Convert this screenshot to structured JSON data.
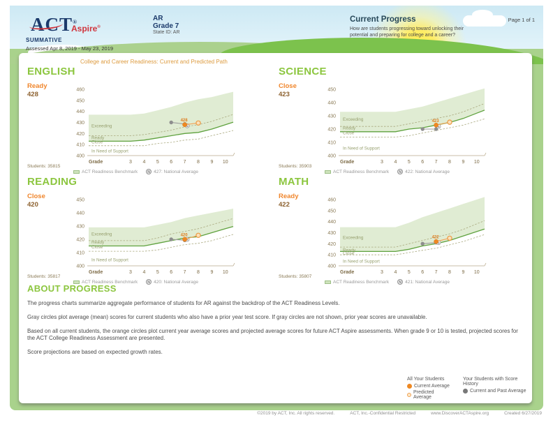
{
  "header": {
    "brand": "ACT",
    "brand_reg": "®",
    "brand_sub": "Aspire",
    "program": "SUMMATIVE",
    "assessed": "Assessed Apr 8, 2019 - May 23, 2019",
    "org": "AR",
    "grade": "Grade 7",
    "state_id": "State ID: AR",
    "title": "Current Progress",
    "subtitle": "How are students progressing toward unlocking their potential and preparing for college and a career?",
    "page": "Page 1 of 1"
  },
  "main_chart_title": "College and Career Readiness: Current and Predicted Path",
  "shared": {
    "x_axis_label": "Grade",
    "grades": [
      "3",
      "4",
      "5",
      "6",
      "7",
      "8",
      "9",
      "10"
    ],
    "zone_labels": [
      "Exceeding",
      "Ready",
      "Close",
      "In Need of Support"
    ],
    "n_glyph": "N",
    "benchmark_legend": "ACT Readiness Benchmark"
  },
  "chart_data": [
    {
      "type": "line",
      "subject": "ENGLISH",
      "status": "Ready",
      "score": "428",
      "students": "Students: 35815",
      "national_label": "427: National Average",
      "ylim": [
        400,
        460
      ],
      "yticks": [
        460,
        450,
        440,
        430,
        420,
        410,
        400
      ],
      "band_top": [
        437,
        438,
        441,
        444,
        448,
        451,
        453,
        456
      ],
      "benchmark": [
        413,
        414,
        416,
        418,
        420,
        421,
        424,
        428
      ],
      "upper_dashed": [
        418,
        419,
        421,
        423,
        426,
        428,
        431,
        435
      ],
      "lower_dashed": [
        409,
        409,
        411,
        412,
        414,
        415,
        418,
        421
      ],
      "zone_y": [
        427,
        416,
        412.3,
        404
      ],
      "gray_points": [
        [
          6,
          430
        ],
        [
          7,
          428.6
        ]
      ],
      "current_point": [
        7,
        428
      ],
      "predicted_point": [
        8,
        429.5
      ],
      "national_value": 427,
      "point_label": "428"
    },
    {
      "type": "line",
      "subject": "SCIENCE",
      "status": "Close",
      "score": "423",
      "students": "Students: 35903",
      "national_label": "422: National Average",
      "ylim": [
        400,
        450
      ],
      "yticks": [
        450,
        440,
        430,
        420,
        410,
        400
      ],
      "band_top": [
        433,
        433,
        435,
        437,
        440,
        443,
        446,
        449
      ],
      "benchmark": [
        418,
        418,
        420,
        421,
        423,
        425,
        428,
        432
      ],
      "upper_dashed": [
        422,
        422,
        424,
        426,
        428,
        430,
        433,
        437
      ],
      "lower_dashed": [
        414,
        414,
        415,
        417,
        419,
        421,
        423,
        426
      ],
      "zone_y": [
        427.5,
        420.8,
        417,
        405.5
      ],
      "gray_points": [
        [
          6,
          420
        ],
        [
          7,
          420
        ]
      ],
      "current_point": [
        7,
        423
      ],
      "predicted_point": [
        8,
        425.2
      ],
      "national_value": 422,
      "point_label": "423"
    },
    {
      "type": "line",
      "subject": "READING",
      "status": "Close",
      "score": "420",
      "students": "Students: 35817",
      "national_label": "420: National Average",
      "ylim": [
        400,
        450
      ],
      "yticks": [
        450,
        440,
        430,
        420,
        410,
        400
      ],
      "band_top": [
        429,
        429,
        431,
        433,
        436,
        438,
        440,
        442
      ],
      "benchmark": [
        415,
        415,
        417,
        419,
        421,
        422,
        425,
        428
      ],
      "upper_dashed": [
        419,
        419,
        421,
        424,
        426,
        428,
        431,
        434
      ],
      "lower_dashed": [
        411,
        411,
        412,
        414,
        416,
        417,
        419,
        422
      ],
      "zone_y": [
        424,
        417.8,
        414.2,
        404.5
      ],
      "gray_points": [
        [
          6,
          420
        ],
        [
          7,
          419.3
        ]
      ],
      "current_point": [
        7,
        420
      ],
      "predicted_point": [
        8,
        423
      ],
      "national_value": 420,
      "point_label": "420"
    },
    {
      "type": "line",
      "subject": "MATH",
      "status": "Ready",
      "score": "422",
      "students": "Students: 35807",
      "national_label": "421: National Average",
      "ylim": [
        400,
        460
      ],
      "yticks": [
        460,
        450,
        440,
        430,
        420,
        410,
        400
      ],
      "band_top": [
        435,
        435,
        439,
        444,
        448,
        452,
        456,
        460
      ],
      "benchmark": [
        413,
        413,
        415,
        418,
        420,
        423,
        427,
        431
      ],
      "upper_dashed": [
        417,
        417,
        420,
        423,
        426,
        429,
        433,
        438
      ],
      "lower_dashed": [
        410,
        410,
        412,
        414,
        416,
        419,
        422,
        426
      ],
      "zone_y": [
        425.5,
        414.3,
        411.3,
        404
      ],
      "gray_points": [
        [
          6,
          420
        ],
        [
          7,
          421
        ]
      ],
      "current_point": [
        7,
        422
      ],
      "predicted_point": [
        8,
        425
      ],
      "national_value": 421,
      "point_label": "422"
    }
  ],
  "about": {
    "title": "ABOUT PROGRESS",
    "paragraphs": [
      "The progress charts summarize aggregate performance of students for AR against the backdrop of the ACT Readiness Levels.",
      "Gray circles plot average (mean) scores for current students who also have a prior year test score. If gray circles are not shown, prior year scores are unavailable.",
      "Based on all current students, the orange circles plot current year average scores and projected average scores for future ACT Aspire assessments. When grade 9 or 10 is tested, projected scores for the ACT College Readiness Assessment are presented.",
      "Score projections are based on expected growth rates."
    ]
  },
  "bottom_legend": {
    "col1_title": "All Your Students",
    "col1_item1": "Current Average",
    "col1_item2": "Predicted Average",
    "col2_title": "Your Students with Score History",
    "col2_item1": "Current and Past Average"
  },
  "footer": {
    "copyright": "©2019 by ACT, Inc. All rights reserved.",
    "confidential": "ACT, Inc.-Confidential Restricted",
    "url": "www.DiscoverACTAspire.org",
    "created": "Created 6/27/2019"
  },
  "colors": {
    "accent_green": "#8cc63f",
    "accent_orange": "#f0862c",
    "score_brown": "#8d6230",
    "band_fill": "#e0ecd3",
    "benchmark_line": "#5fa23f",
    "navy": "#1b3a6b",
    "red": "#d0343c"
  }
}
